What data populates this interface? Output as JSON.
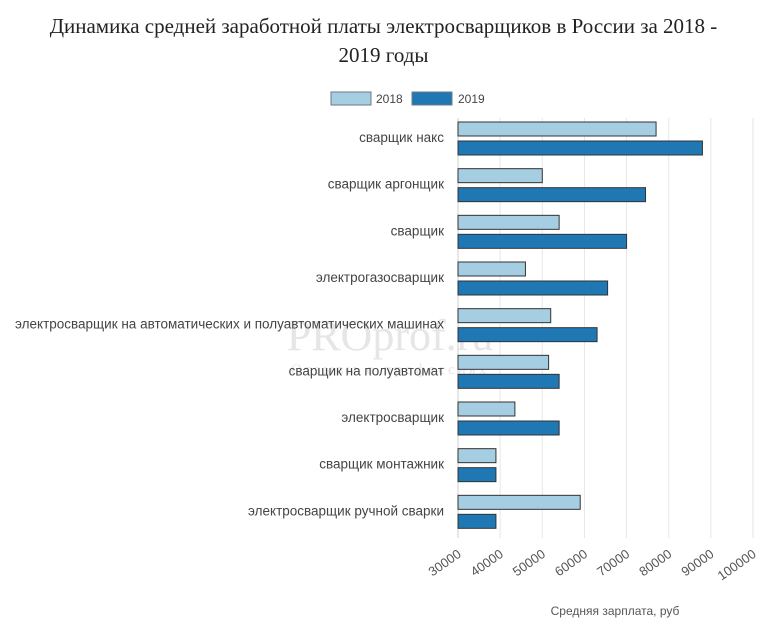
{
  "chart_data": {
    "type": "bar",
    "orientation": "horizontal",
    "title": "Динамика средней заработной платы электросварщиков в России за 2018 - 2019 годы",
    "title_lines": [
      "Динамика средней заработной платы электросварщиков в России за 2018 -",
      "2019 годы"
    ],
    "xlabel": "Средняя зарплата, руб",
    "ylabel": "",
    "xlim": [
      30000,
      100000
    ],
    "xticks": [
      "30000",
      "40000",
      "50000",
      "60000",
      "70000",
      "80000",
      "90000",
      "100000"
    ],
    "grid": true,
    "legend_position": "top-center",
    "categories": [
      "сварщик накс",
      "сварщик аргонщик",
      "сварщик",
      "электрогазосварщик",
      "электросварщик на автоматических и полуавтоматических машинах",
      "сварщик на полуавтомат",
      "электросварщик",
      "сварщик монтажник",
      "электросварщик ручной сварки"
    ],
    "series": [
      {
        "name": "2018",
        "color": "#a6cee3",
        "values": [
          77000,
          50000,
          54000,
          46000,
          52000,
          51500,
          43500,
          39000,
          59000
        ]
      },
      {
        "name": "2019",
        "color": "#1f78b4",
        "values": [
          88000,
          74500,
          70000,
          65500,
          63000,
          54000,
          54000,
          39000,
          39000
        ]
      }
    ]
  },
  "watermark": {
    "main": "PROprof.ru",
    "sub": "Отзывы о профессиях"
  }
}
